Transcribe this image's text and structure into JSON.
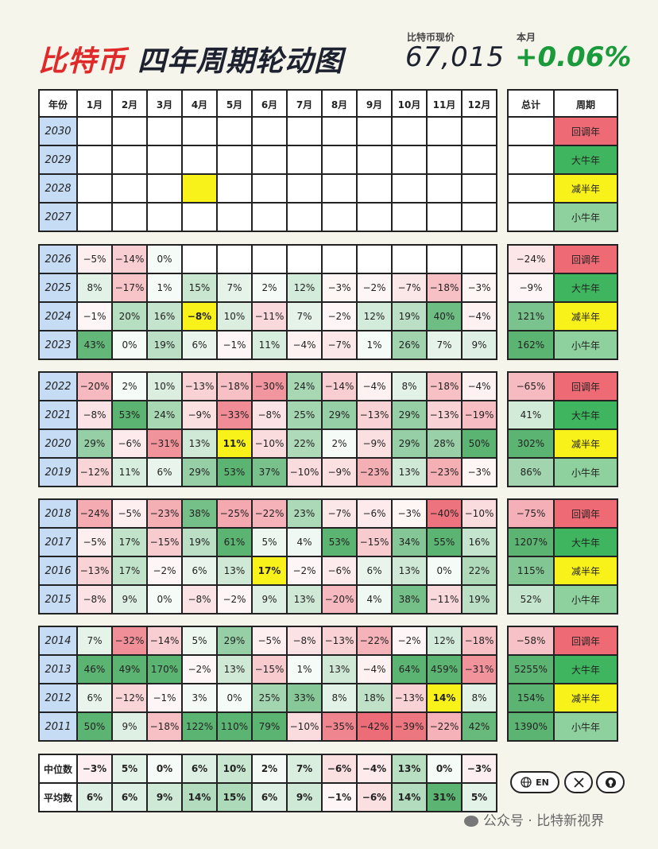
{
  "header": {
    "title_red": "比特币",
    "title_dark": "四年周期轮动图",
    "price_label": "比特币现价",
    "price_value": "67,015",
    "change_label": "本月",
    "change_value": "+0.06%"
  },
  "columns": {
    "year": "年份",
    "months": [
      "1月",
      "2月",
      "3月",
      "4月",
      "5月",
      "6月",
      "7月",
      "8月",
      "9月",
      "10月",
      "11月",
      "12月"
    ],
    "total": "总计",
    "cycle": "周期"
  },
  "groups": [
    {
      "rows": [
        {
          "year": "2030",
          "months": [
            null,
            null,
            null,
            null,
            null,
            null,
            null,
            null,
            null,
            null,
            null,
            null
          ],
          "total": null,
          "cycle": "回调年"
        },
        {
          "year": "2029",
          "months": [
            null,
            null,
            null,
            null,
            null,
            null,
            null,
            null,
            null,
            null,
            null,
            null
          ],
          "total": null,
          "cycle": "大牛年"
        },
        {
          "year": "2028",
          "months": [
            null,
            null,
            null,
            null,
            null,
            null,
            null,
            null,
            null,
            null,
            null,
            null
          ],
          "total": null,
          "cycle": "减半年",
          "highlight": 3
        },
        {
          "year": "2027",
          "months": [
            null,
            null,
            null,
            null,
            null,
            null,
            null,
            null,
            null,
            null,
            null,
            null
          ],
          "total": null,
          "cycle": "小牛年"
        }
      ]
    },
    {
      "rows": [
        {
          "year": "2026",
          "months": [
            -5,
            -14,
            0,
            null,
            null,
            null,
            null,
            null,
            null,
            null,
            null,
            null
          ],
          "total": -24,
          "cycle": "回调年"
        },
        {
          "year": "2025",
          "months": [
            8,
            -17,
            1,
            15,
            7,
            2,
            12,
            -3,
            -2,
            -7,
            -18,
            -3
          ],
          "total": -9,
          "cycle": "大牛年"
        },
        {
          "year": "2024",
          "months": [
            -1,
            20,
            16,
            -8,
            10,
            -11,
            7,
            -2,
            12,
            19,
            40,
            -4
          ],
          "total": 121,
          "cycle": "减半年",
          "highlight": 3
        },
        {
          "year": "2023",
          "months": [
            43,
            0,
            19,
            6,
            -1,
            11,
            -4,
            -7,
            1,
            26,
            7,
            9
          ],
          "total": 162,
          "cycle": "小牛年"
        }
      ]
    },
    {
      "rows": [
        {
          "year": "2022",
          "months": [
            -20,
            2,
            10,
            -13,
            -18,
            -30,
            24,
            -14,
            -4,
            8,
            -18,
            -4
          ],
          "total": -65,
          "cycle": "回调年"
        },
        {
          "year": "2021",
          "months": [
            -8,
            53,
            24,
            -9,
            -33,
            -8,
            25,
            29,
            -13,
            29,
            -13,
            -19
          ],
          "total": 41,
          "cycle": "大牛年"
        },
        {
          "year": "2020",
          "months": [
            29,
            -6,
            -31,
            13,
            11,
            -10,
            22,
            2,
            -9,
            29,
            28,
            50
          ],
          "total": 302,
          "cycle": "减半年",
          "highlight": 4
        },
        {
          "year": "2019",
          "months": [
            -12,
            11,
            6,
            29,
            53,
            37,
            -10,
            -9,
            -23,
            13,
            -23,
            -3
          ],
          "total": 86,
          "cycle": "小牛年"
        }
      ]
    },
    {
      "rows": [
        {
          "year": "2018",
          "months": [
            -24,
            -5,
            -23,
            38,
            -25,
            -22,
            23,
            -7,
            -6,
            -3,
            -40,
            -10
          ],
          "total": -75,
          "cycle": "回调年"
        },
        {
          "year": "2017",
          "months": [
            -5,
            17,
            -15,
            19,
            61,
            5,
            4,
            53,
            -15,
            34,
            55,
            16
          ],
          "total": 1207,
          "cycle": "大牛年"
        },
        {
          "year": "2016",
          "months": [
            -13,
            17,
            -2,
            6,
            13,
            17,
            -2,
            -6,
            6,
            13,
            0,
            22
          ],
          "total": 115,
          "cycle": "减半年",
          "highlight": 5
        },
        {
          "year": "2015",
          "months": [
            -8,
            9,
            0,
            -8,
            -2,
            9,
            13,
            -20,
            4,
            38,
            -11,
            19
          ],
          "total": 52,
          "cycle": "小牛年"
        }
      ]
    },
    {
      "rows": [
        {
          "year": "2014",
          "months": [
            7,
            -32,
            -14,
            5,
            29,
            -5,
            -8,
            -13,
            -22,
            -2,
            12,
            -18
          ],
          "total": -58,
          "cycle": "回调年"
        },
        {
          "year": "2013",
          "months": [
            46,
            49,
            170,
            -2,
            13,
            -15,
            1,
            13,
            -4,
            64,
            459,
            -31
          ],
          "total": 5255,
          "cycle": "大牛年"
        },
        {
          "year": "2012",
          "months": [
            6,
            -12,
            -1,
            3,
            0,
            25,
            33,
            8,
            18,
            -13,
            14,
            8
          ],
          "total": 154,
          "cycle": "减半年",
          "highlight": 10
        },
        {
          "year": "2011",
          "months": [
            50,
            9,
            -18,
            122,
            110,
            79,
            -10,
            -35,
            -42,
            -39,
            -22,
            42
          ],
          "total": 1390,
          "cycle": "小牛年"
        }
      ]
    }
  ],
  "stats": [
    {
      "label": "中位数",
      "months": [
        -3,
        5,
        0,
        6,
        10,
        2,
        7,
        -6,
        -4,
        13,
        0,
        -3
      ]
    },
    {
      "label": "平均数",
      "months": [
        6,
        6,
        9,
        14,
        15,
        6,
        9,
        -1,
        -6,
        14,
        31,
        5
      ]
    }
  ],
  "cycle_colors": {
    "回调年": "#ee6b76",
    "大牛年": "#3fb55f",
    "减半年": "#f9f21a",
    "小牛年": "#8fd19e"
  },
  "colors": {
    "positive": "#3fa75a",
    "negative": "#e8505e",
    "highlight": "#f9f21a",
    "year_cell": "#c6dcf5"
  },
  "buttons": {
    "lang": "EN",
    "globe_icon": "globe-icon",
    "x_icon": "x-logo-icon",
    "github_icon": "github-icon"
  },
  "watermark": "公众号 · 比特新视界"
}
